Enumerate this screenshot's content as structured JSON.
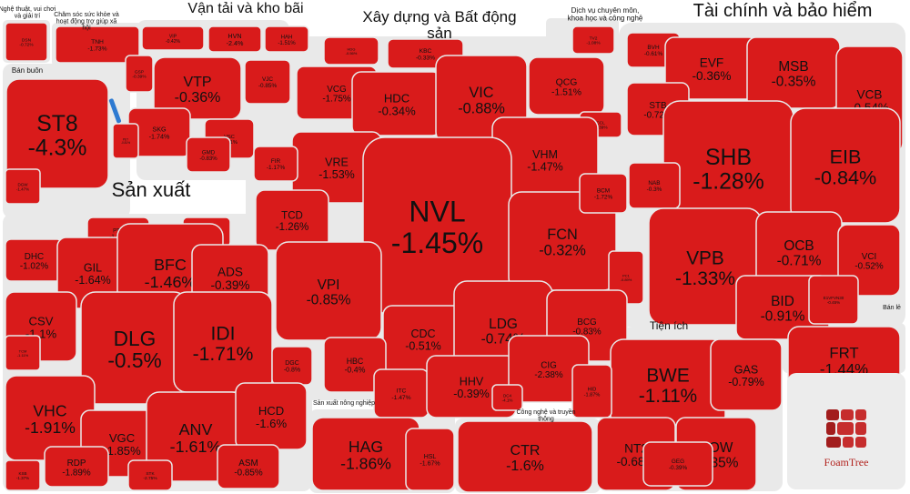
{
  "chart_data": {
    "type": "treemap",
    "title": "",
    "colors": {
      "loss": "#d91b1b",
      "gap": "#e9e9e9",
      "text": "#111111",
      "group_label": "#111111",
      "highlight": "#2e7ad1"
    },
    "groups": [
      {
        "name": "Nghệ thuật, vui chơi và giải trí",
        "stocks": [
          {
            "ticker": "DSN",
            "change": "-0.72%"
          }
        ]
      },
      {
        "name": "Chăm sóc sức khỏe và hoạt động trợ giúp xã hội",
        "stocks": [
          {
            "ticker": "TNH",
            "change": "-1.73%"
          }
        ]
      },
      {
        "name": "Vận tải và kho bãi",
        "stocks": [
          {
            "ticker": "VIP",
            "change": "-0.42%"
          },
          {
            "ticker": "HVN",
            "change": "-2.4%"
          },
          {
            "ticker": "HAH",
            "change": "-1.51%"
          },
          {
            "ticker": "GSP",
            "change": "-0.39%"
          },
          {
            "ticker": "VTP",
            "change": "-0.36%"
          },
          {
            "ticker": "VJC",
            "change": "-0.85%"
          },
          {
            "ticker": "SKG",
            "change": "-1.74%"
          },
          {
            "ticker": "VSC",
            "change": "-0.71%"
          },
          {
            "ticker": "GMD",
            "change": "-0.83%"
          }
        ]
      },
      {
        "name": "Bán buôn",
        "stocks": [
          {
            "ticker": "ST8",
            "change": "-4.3%"
          },
          {
            "ticker": "PET",
            "change": "-0.81%"
          }
        ]
      },
      {
        "name": "Xây dựng và Bất động sản",
        "stocks": [
          {
            "ticker": "HDG",
            "change": "-0.56%"
          },
          {
            "ticker": "KBC",
            "change": "-0.33%"
          },
          {
            "ticker": "VCG",
            "change": "-1.75%"
          },
          {
            "ticker": "HDC",
            "change": "-0.34%"
          },
          {
            "ticker": "VIC",
            "change": "-0.88%"
          },
          {
            "ticker": "QCG",
            "change": "-1.51%"
          },
          {
            "ticker": "CCL",
            "change": "-0.39%"
          },
          {
            "ticker": "VHM",
            "change": "-1.47%"
          },
          {
            "ticker": "VRE",
            "change": "-1.53%"
          },
          {
            "ticker": "FIR",
            "change": "-1.17%"
          },
          {
            "ticker": "TCD",
            "change": "-1.26%"
          },
          {
            "ticker": "NVL",
            "change": "-1.45%"
          },
          {
            "ticker": "FCN",
            "change": "-0.32%"
          },
          {
            "ticker": "BCM",
            "change": "-1.72%"
          },
          {
            "ticker": "VPI",
            "change": "-0.85%"
          },
          {
            "ticker": "PC1",
            "change": "-0.89%"
          },
          {
            "ticker": "CDC",
            "change": "-0.51%"
          },
          {
            "ticker": "LDG",
            "change": "-0.74%"
          },
          {
            "ticker": "BCG",
            "change": "-0.83%"
          },
          {
            "ticker": "HBC",
            "change": "-0.4%"
          },
          {
            "ticker": "ITC",
            "change": "-1.47%"
          },
          {
            "ticker": "HHV",
            "change": "-0.39%"
          },
          {
            "ticker": "CIG",
            "change": "-2.38%"
          },
          {
            "ticker": "DC4",
            "change": "-4.1%"
          }
        ]
      },
      {
        "name": "Dịch vụ chuyên môn, khoa học và công nghệ",
        "stocks": [
          {
            "ticker": "TV2",
            "change": "-1.08%"
          }
        ]
      },
      {
        "name": "Tài chính và bảo hiểm",
        "stocks": [
          {
            "ticker": "BVH",
            "change": "-0.61%"
          },
          {
            "ticker": "EVF",
            "change": "-0.36%"
          },
          {
            "ticker": "MSB",
            "change": "-0.35%"
          },
          {
            "ticker": "VCB",
            "change": "-0.54%"
          },
          {
            "ticker": "STB",
            "change": "-0.72%"
          },
          {
            "ticker": "SHB",
            "change": "-1.28%"
          },
          {
            "ticker": "EIB",
            "change": "-0.84%"
          },
          {
            "ticker": "NAB",
            "change": "-0.3%"
          },
          {
            "ticker": "VPB",
            "change": "-1.33%"
          },
          {
            "ticker": "OCB",
            "change": "-0.71%"
          },
          {
            "ticker": "VCI",
            "change": "-0.52%"
          },
          {
            "ticker": "BID",
            "change": "-0.91%"
          },
          {
            "ticker": "E1VFVN30",
            "change": "-0.45%"
          }
        ]
      },
      {
        "name": "Sản xuất",
        "stocks": [
          {
            "ticker": "DGW",
            "change": "-1.47%"
          },
          {
            "ticker": "PTB",
            "change": "-1.28%"
          },
          {
            "ticker": "GVR",
            "change": "-0.31%"
          },
          {
            "ticker": "DHC",
            "change": "-1.02%"
          },
          {
            "ticker": "GIL",
            "change": "-1.64%"
          },
          {
            "ticker": "BFC",
            "change": "-1.46%"
          },
          {
            "ticker": "ADS",
            "change": "-0.39%"
          },
          {
            "ticker": "CSV",
            "change": "-1.1%"
          },
          {
            "ticker": "DLG",
            "change": "-0.5%"
          },
          {
            "ticker": "IDI",
            "change": "-1.71%"
          },
          {
            "ticker": "TCM",
            "change": "-1.11%"
          },
          {
            "ticker": "DGC",
            "change": "-0.8%"
          },
          {
            "ticker": "VHC",
            "change": "-1.91%"
          },
          {
            "ticker": "VGC",
            "change": "-1.85%"
          },
          {
            "ticker": "ANV",
            "change": "-1.61%"
          },
          {
            "ticker": "HCD",
            "change": "-1.6%"
          },
          {
            "ticker": "RDP",
            "change": "-1.89%"
          },
          {
            "ticker": "STK",
            "change": "-2.75%"
          },
          {
            "ticker": "ASM",
            "change": "-0.85%"
          },
          {
            "ticker": "KSB",
            "change": "-1.37%"
          }
        ]
      },
      {
        "name": "Sản xuất nông nghiệp",
        "stocks": [
          {
            "ticker": "HAG",
            "change": "-1.86%"
          },
          {
            "ticker": "HSL",
            "change": "-1.67%"
          }
        ]
      },
      {
        "name": "Công nghệ và truyền thông",
        "stocks": [
          {
            "ticker": "CTR",
            "change": "-1.6%"
          }
        ]
      },
      {
        "name": "Tiện ích",
        "stocks": [
          {
            "ticker": "BWE",
            "change": "-1.11%"
          },
          {
            "ticker": "GAS",
            "change": "-0.79%"
          },
          {
            "ticker": "HID",
            "change": "-1.87%"
          },
          {
            "ticker": "NT2",
            "change": "-0.68%"
          },
          {
            "ticker": "POW",
            "change": "-1.35%"
          },
          {
            "ticker": "GEG",
            "change": "-0.39%"
          }
        ]
      },
      {
        "name": "Bán lẻ",
        "stocks": [
          {
            "ticker": "FRT",
            "change": "-1.44%"
          }
        ]
      }
    ],
    "branding": {
      "name": "FoamTree"
    }
  }
}
